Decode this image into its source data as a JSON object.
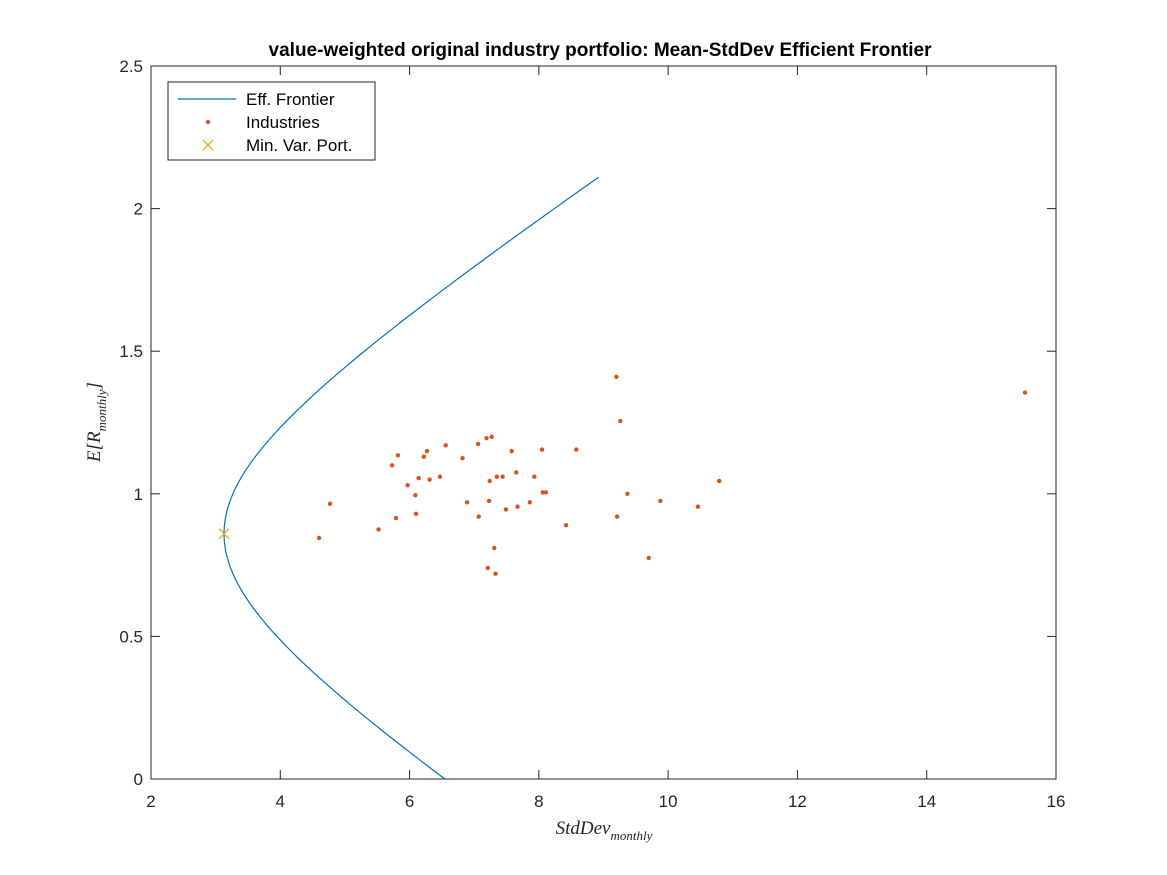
{
  "chart_data": {
    "type": "scatter",
    "title": "value-weighted original industry portfolio: Mean-StdDev Efficient Frontier",
    "xlabel": {
      "base": "StdDev",
      "sub": "monthly"
    },
    "ylabel": {
      "base": "E[R",
      "sub": "monthly",
      "close": "]"
    },
    "xlim": [
      2,
      16
    ],
    "ylim": [
      0,
      2.5
    ],
    "xticks": [
      2,
      4,
      6,
      8,
      10,
      12,
      14,
      16
    ],
    "yticks": [
      0,
      0.5,
      1,
      1.5,
      2,
      2.5
    ],
    "ytick_labels": [
      "0",
      "0.5",
      "1",
      "1.5",
      "2",
      "2.5"
    ],
    "grid": false,
    "legend_position": "top-left",
    "series": [
      {
        "name": "Eff. Frontier",
        "kind": "line",
        "color": "#0072BD",
        "min_var_std": 3.13,
        "min_var_mean": 0.86,
        "curvature_a": 44.7,
        "y_range": [
          0,
          2.11
        ]
      },
      {
        "name": "Industries",
        "kind": "scatter",
        "color": "#D95319",
        "points": [
          [
            4.6,
            0.845
          ],
          [
            4.77,
            0.965
          ],
          [
            5.52,
            0.875
          ],
          [
            5.73,
            1.1
          ],
          [
            5.79,
            0.915
          ],
          [
            5.82,
            1.135
          ],
          [
            5.97,
            1.03
          ],
          [
            6.09,
            0.995
          ],
          [
            6.1,
            0.93
          ],
          [
            6.14,
            1.055
          ],
          [
            6.22,
            1.13
          ],
          [
            6.27,
            1.15
          ],
          [
            6.31,
            1.05
          ],
          [
            6.47,
            1.06
          ],
          [
            6.56,
            1.17
          ],
          [
            6.82,
            1.125
          ],
          [
            6.89,
            0.97
          ],
          [
            7.06,
            1.175
          ],
          [
            7.07,
            0.92
          ],
          [
            7.19,
            1.195
          ],
          [
            7.21,
            0.74
          ],
          [
            7.23,
            0.975
          ],
          [
            7.24,
            1.045
          ],
          [
            7.27,
            1.2
          ],
          [
            7.31,
            0.81
          ],
          [
            7.33,
            0.72
          ],
          [
            7.35,
            1.06
          ],
          [
            7.44,
            1.06
          ],
          [
            7.49,
            0.945
          ],
          [
            7.58,
            1.15
          ],
          [
            7.65,
            1.075
          ],
          [
            7.67,
            0.955
          ],
          [
            7.86,
            0.97
          ],
          [
            7.93,
            1.06
          ],
          [
            8.05,
            1.155
          ],
          [
            8.06,
            1.005
          ],
          [
            8.11,
            1.005
          ],
          [
            8.42,
            0.89
          ],
          [
            8.58,
            1.155
          ],
          [
            9.2,
            1.41
          ],
          [
            9.21,
            0.92
          ],
          [
            9.26,
            1.255
          ],
          [
            9.37,
            1.0
          ],
          [
            9.7,
            0.775
          ],
          [
            9.88,
            0.975
          ],
          [
            10.46,
            0.955
          ],
          [
            10.79,
            1.045
          ],
          [
            15.52,
            1.355
          ]
        ]
      },
      {
        "name": "Min. Var. Port.",
        "kind": "marker",
        "marker": "x",
        "color": "#EDB120",
        "points": [
          [
            3.13,
            0.86
          ]
        ]
      }
    ]
  }
}
